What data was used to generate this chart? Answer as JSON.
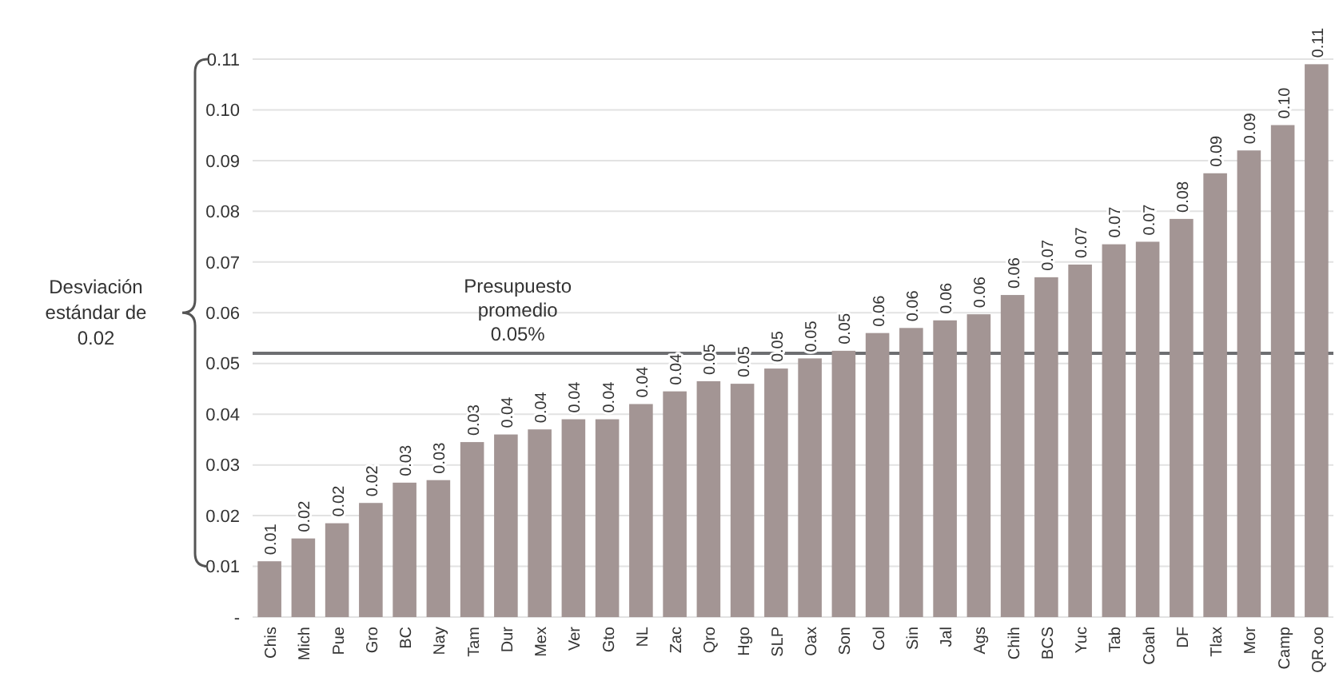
{
  "chart_data": {
    "type": "bar",
    "categories": [
      "Chis",
      "Mich",
      "Pue",
      "Gro",
      "BC",
      "Nay",
      "Tam",
      "Dur",
      "Mex",
      "Ver",
      "Gto",
      "NL",
      "Zac",
      "Qro",
      "Hgo",
      "SLP",
      "Oax",
      "Son",
      "Col",
      "Sin",
      "Jal",
      "Ags",
      "Chih",
      "BCS",
      "Yuc",
      "Tab",
      "Coah",
      "DF",
      "Tlax",
      "Mor",
      "Camp",
      "QR.oo"
    ],
    "values": [
      0.011,
      0.0155,
      0.0185,
      0.0225,
      0.0265,
      0.027,
      0.0345,
      0.036,
      0.037,
      0.039,
      0.039,
      0.042,
      0.0445,
      0.0465,
      0.046,
      0.049,
      0.051,
      0.0525,
      0.056,
      0.057,
      0.0585,
      0.0597,
      0.0635,
      0.067,
      0.0695,
      0.0735,
      0.074,
      0.0785,
      0.0875,
      0.092,
      0.097,
      0.109
    ],
    "value_labels": [
      "0.01",
      "0.02",
      "0.02",
      "0.02",
      "0.03",
      "0.03",
      "0.03",
      "0.04",
      "0.04",
      "0.04",
      "0.04",
      "0.04",
      "0.04",
      "0.05",
      "0.05",
      "0.05",
      "0.05",
      "0.05",
      "0.06",
      "0.06",
      "0.06",
      "0.06",
      "0.06",
      "0.07",
      "0.07",
      "0.07",
      "0.07",
      "0.08",
      "0.09",
      "0.09",
      "0.10",
      "0.11"
    ],
    "color": "#a39594",
    "ylim": [
      0,
      0.11
    ],
    "yticks": [
      {
        "value": 0,
        "label": "-"
      },
      0.01,
      0.02,
      0.03,
      0.04,
      0.05,
      0.06,
      0.07,
      0.08,
      0.09,
      {
        "value": 0.1,
        "label": "0.10"
      },
      0.11
    ],
    "ref_lines": [
      {
        "axis": "y",
        "value": 0.052,
        "label": "Presupuesto\npromedio\n0.05%",
        "color": "#6d6e71"
      }
    ],
    "annotations": [
      "Desviación\nestándar de\n0.02"
    ],
    "grid": "y"
  }
}
